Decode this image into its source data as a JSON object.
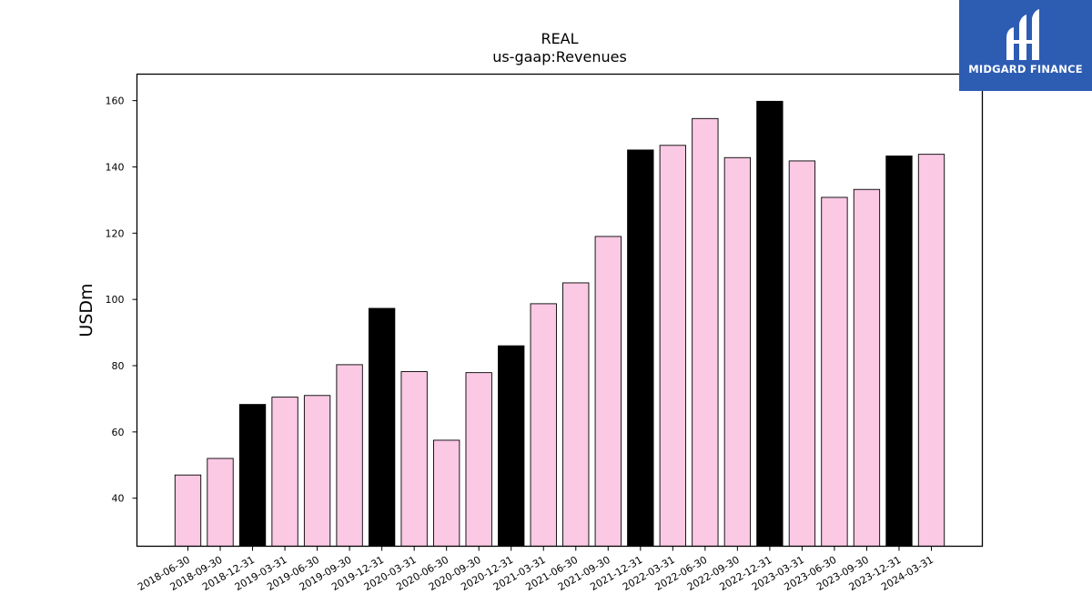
{
  "chart_data": {
    "type": "bar",
    "title": "REAL",
    "subtitle": "us-gaap:Revenues",
    "xlabel": "",
    "ylabel": "USDm",
    "ylim": [
      25.5,
      168
    ],
    "yticks": [
      40,
      60,
      80,
      100,
      120,
      140,
      160
    ],
    "categories": [
      "2018-06-30",
      "2018-09-30",
      "2018-12-31",
      "2019-03-31",
      "2019-06-30",
      "2019-09-30",
      "2019-12-31",
      "2020-03-31",
      "2020-06-30",
      "2020-09-30",
      "2020-12-31",
      "2021-03-31",
      "2021-06-30",
      "2021-09-30",
      "2021-12-31",
      "2022-03-31",
      "2022-06-30",
      "2022-09-30",
      "2022-12-31",
      "2023-03-31",
      "2023-06-30",
      "2023-09-30",
      "2023-12-31",
      "2024-03-31"
    ],
    "values": [
      47.0,
      52.0,
      68.3,
      70.5,
      71.0,
      80.3,
      97.3,
      78.2,
      57.5,
      77.9,
      86.0,
      98.7,
      105.0,
      119.0,
      145.1,
      146.5,
      154.6,
      142.8,
      159.8,
      141.8,
      130.8,
      133.2,
      143.3,
      143.8
    ],
    "bar_colors": [
      "#fbc9e3",
      "#fbc9e3",
      "#000000",
      "#fbc9e3",
      "#fbc9e3",
      "#fbc9e3",
      "#000000",
      "#fbc9e3",
      "#fbc9e3",
      "#fbc9e3",
      "#000000",
      "#fbc9e3",
      "#fbc9e3",
      "#fbc9e3",
      "#000000",
      "#fbc9e3",
      "#fbc9e3",
      "#fbc9e3",
      "#000000",
      "#fbc9e3",
      "#fbc9e3",
      "#fbc9e3",
      "#000000",
      "#fbc9e3"
    ],
    "grid": false,
    "legend": "none"
  },
  "logo": {
    "text": "MIDGARD FINANCE",
    "background": "#2d5cb3",
    "icon": "midgard-logo-icon"
  }
}
